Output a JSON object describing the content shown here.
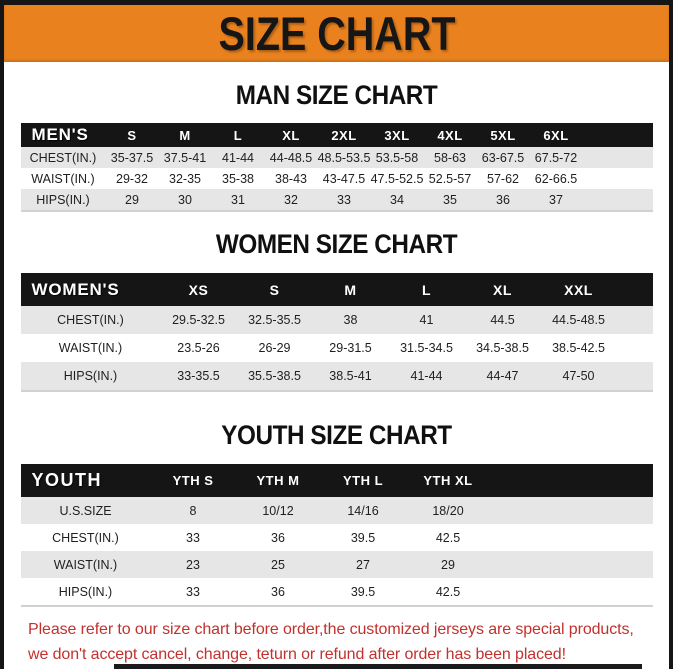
{
  "page": {
    "title": "SIZE CHART",
    "footer_line1": "Please refer to our size chart before order,the customized jerseys are special products,",
    "footer_line2": "we don't accept cancel, change, teturn or refund after order has been placed!",
    "colors": {
      "accent_orange": "#E8811E",
      "bar_black": "#151515",
      "row_stripe_gray": "#E6E6E6",
      "notice_red": "#C2312D"
    }
  },
  "tables": [
    {
      "id": "men",
      "section_title": "MAN SIZE CHART",
      "header_label": "MEN'S",
      "columns": [
        "S",
        "M",
        "L",
        "XL",
        "2XL",
        "3XL",
        "4XL",
        "5XL",
        "6XL"
      ],
      "rows": [
        {
          "label": "CHEST(IN.)",
          "values": [
            "35-37.5",
            "37.5-41",
            "41-44",
            "44-48.5",
            "48.5-53.5",
            "53.5-58",
            "58-63",
            "63-67.5",
            "67.5-72"
          ]
        },
        {
          "label": "WAIST(IN.)",
          "values": [
            "29-32",
            "32-35",
            "35-38",
            "38-43",
            "43-47.5",
            "47.5-52.5",
            "52.5-57",
            "57-62",
            "62-66.5"
          ]
        },
        {
          "label": "HIPS(IN.)",
          "values": [
            "29",
            "30",
            "31",
            "32",
            "33",
            "34",
            "35",
            "36",
            "37"
          ]
        }
      ]
    },
    {
      "id": "women",
      "section_title": "WOMEN SIZE CHART",
      "header_label": "WOMEN'S",
      "columns": [
        "XS",
        "S",
        "M",
        "L",
        "XL",
        "XXL"
      ],
      "rows": [
        {
          "label": "CHEST(IN.)",
          "values": [
            "29.5-32.5",
            "32.5-35.5",
            "38",
            "41",
            "44.5",
            "44.5-48.5"
          ]
        },
        {
          "label": "WAIST(IN.)",
          "values": [
            "23.5-26",
            "26-29",
            "29-31.5",
            "31.5-34.5",
            "34.5-38.5",
            "38.5-42.5"
          ]
        },
        {
          "label": "HIPS(IN.)",
          "values": [
            "33-35.5",
            "35.5-38.5",
            "38.5-41",
            "41-44",
            "44-47",
            "47-50"
          ]
        }
      ]
    },
    {
      "id": "youth",
      "section_title": "YOUTH SIZE CHART",
      "header_label": "YOUTH",
      "columns": [
        "YTH S",
        "YTH M",
        "YTH L",
        "YTH XL"
      ],
      "rows": [
        {
          "label": "U.S.SIZE",
          "values": [
            "8",
            "10/12",
            "14/16",
            "18/20"
          ]
        },
        {
          "label": "CHEST(IN.)",
          "values": [
            "33",
            "36",
            "39.5",
            "42.5"
          ]
        },
        {
          "label": "WAIST(IN.)",
          "values": [
            "23",
            "25",
            "27",
            "29"
          ]
        },
        {
          "label": "HIPS(IN.)",
          "values": [
            "33",
            "36",
            "39.5",
            "42.5"
          ]
        }
      ]
    }
  ]
}
